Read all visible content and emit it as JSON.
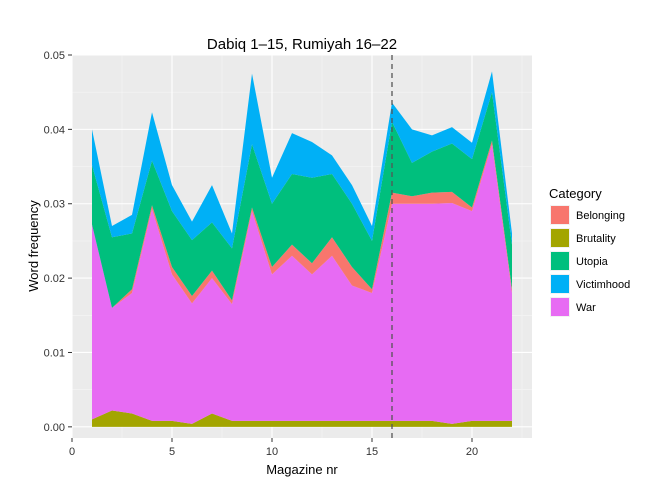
{
  "chart_data": {
    "type": "area",
    "stacked": true,
    "title": "Dabiq 1–15, Rumiyah 16–22",
    "xlabel": "Magazine nr",
    "ylabel": "Word frequency",
    "xlim": [
      0,
      23
    ],
    "ylim": [
      -0.0015,
      0.05
    ],
    "x_ticks": [
      0,
      5,
      10,
      15,
      20
    ],
    "y_ticks": [
      0.0,
      0.01,
      0.02,
      0.03,
      0.04,
      0.05
    ],
    "y_tick_labels": [
      "0.00",
      "0.01",
      "0.02",
      "0.03",
      "0.04",
      "0.05"
    ],
    "grid": true,
    "background": "#ebebeb",
    "vline": {
      "x": 16,
      "style": "dashed",
      "color": "#555555"
    },
    "legend": {
      "title": "Category",
      "placement": "right"
    },
    "x": [
      1,
      2,
      3,
      4,
      5,
      6,
      7,
      8,
      9,
      10,
      11,
      12,
      13,
      14,
      15,
      16,
      17,
      18,
      19,
      20,
      21,
      22
    ],
    "series": [
      {
        "name": "Brutality",
        "color": "#a3a500",
        "values": [
          0.001,
          0.0022,
          0.0018,
          0.0008,
          0.0008,
          0.0004,
          0.0018,
          0.0008,
          0.0008,
          0.0008,
          0.0008,
          0.0008,
          0.0008,
          0.0008,
          0.0008,
          0.0008,
          0.0008,
          0.0008,
          0.0004,
          0.0008,
          0.0008,
          0.0008
        ]
      },
      {
        "name": "War",
        "color": "#e76bf3",
        "values": [
          0.0262,
          0.0138,
          0.0162,
          0.0285,
          0.0197,
          0.0162,
          0.0182,
          0.0157,
          0.0282,
          0.0197,
          0.0222,
          0.0197,
          0.0222,
          0.0182,
          0.0172,
          0.0292,
          0.0292,
          0.0292,
          0.0297,
          0.0282,
          0.0372,
          0.0172
        ]
      },
      {
        "name": "Belonging",
        "color": "#f8766d",
        "values": [
          0.0,
          0.0,
          0.0005,
          0.0005,
          0.001,
          0.001,
          0.001,
          0.0005,
          0.0005,
          0.001,
          0.0015,
          0.0015,
          0.0025,
          0.0025,
          0.0005,
          0.0015,
          0.001,
          0.0015,
          0.0015,
          0.0005,
          0.0005,
          0.0005
        ]
      },
      {
        "name": "Utopia",
        "color": "#00bf7d",
        "values": [
          0.008,
          0.0095,
          0.0075,
          0.006,
          0.0075,
          0.0075,
          0.0065,
          0.007,
          0.0085,
          0.0085,
          0.0095,
          0.0115,
          0.0085,
          0.0085,
          0.0065,
          0.0095,
          0.0045,
          0.0055,
          0.0065,
          0.0065,
          0.0065,
          0.006
        ]
      },
      {
        "name": "Victimhood",
        "color": "#00b0f6",
        "values": [
          0.0048,
          0.0015,
          0.0025,
          0.0065,
          0.0035,
          0.0025,
          0.005,
          0.002,
          0.0095,
          0.0035,
          0.0055,
          0.0048,
          0.0025,
          0.0025,
          0.002,
          0.0026,
          0.0045,
          0.0022,
          0.0022,
          0.0022,
          0.0028,
          0.0015
        ]
      }
    ],
    "legend_order": [
      "Belonging",
      "Brutality",
      "Utopia",
      "Victimhood",
      "War"
    ]
  }
}
